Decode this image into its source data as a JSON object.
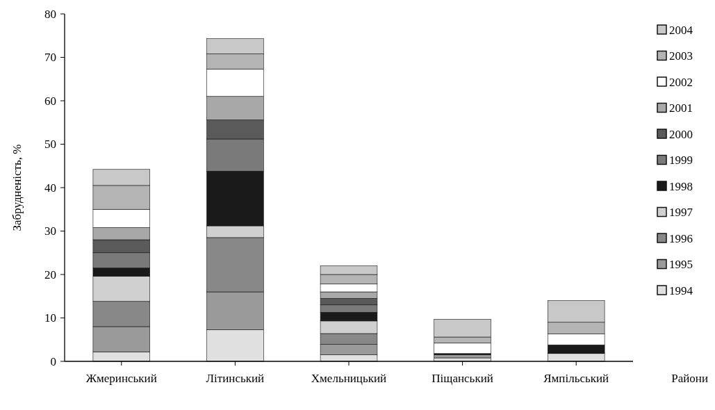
{
  "chart_data": {
    "type": "bar",
    "stacked": true,
    "xlabel": "Райони",
    "ylabel": "Забрудненість, %",
    "categories": [
      "Жмеринський",
      "Літинський",
      "Хмельницький",
      "Піщанський",
      "Ямпільський"
    ],
    "ylim": [
      0,
      80
    ],
    "yticks": [
      0,
      10,
      20,
      30,
      40,
      50,
      60,
      70,
      80
    ],
    "legend": "right",
    "grid": false,
    "series": [
      {
        "name": "1994",
        "color": "#e0e0e0",
        "values": [
          2.2,
          7.3,
          1.5,
          0.8,
          1.8
        ]
      },
      {
        "name": "1995",
        "color": "#9a9a9a",
        "values": [
          5.8,
          8.7,
          2.4,
          0.7,
          0
        ]
      },
      {
        "name": "1996",
        "color": "#888888",
        "values": [
          5.8,
          12.5,
          2.5,
          0,
          0
        ]
      },
      {
        "name": "1997",
        "color": "#d0d0d0",
        "values": [
          5.8,
          2.7,
          2.9,
          0,
          0
        ]
      },
      {
        "name": "1998",
        "color": "#1a1a1a",
        "values": [
          1.9,
          12.6,
          2,
          0.3,
          2
        ]
      },
      {
        "name": "1999",
        "color": "#7a7a7a",
        "values": [
          3.5,
          7.4,
          1.7,
          0,
          0
        ]
      },
      {
        "name": "2000",
        "color": "#5a5a5a",
        "values": [
          3,
          4.4,
          1.5,
          0,
          0
        ]
      },
      {
        "name": "2001",
        "color": "#a8a8a8",
        "values": [
          2.8,
          5.4,
          1.5,
          0,
          0
        ]
      },
      {
        "name": "2002",
        "color": "#ffffff",
        "values": [
          4.2,
          6.3,
          1.8,
          2.4,
          2.5
        ]
      },
      {
        "name": "2003",
        "color": "#b4b4b4",
        "values": [
          5.5,
          3.5,
          2.2,
          1.4,
          2.7
        ]
      },
      {
        "name": "2004",
        "color": "#c8c8c8",
        "values": [
          3.7,
          3.5,
          2,
          4.1,
          5
        ]
      }
    ]
  }
}
